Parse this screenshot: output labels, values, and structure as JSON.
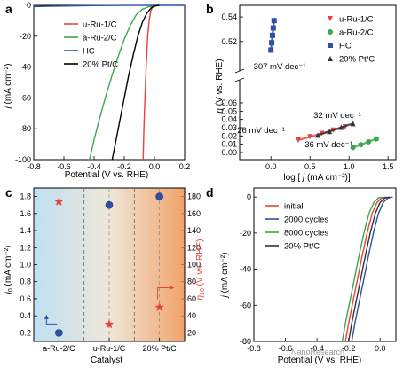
{
  "panels": {
    "a": "a",
    "b": "b",
    "c": "c",
    "d": "d"
  },
  "watermark": "NanoResearch",
  "chart_data": [
    {
      "id": "a",
      "type": "line",
      "xlabel": "Potential (V vs. RHE)",
      "ylabel": "j (mA cm⁻²)",
      "ylabel_italic": "j",
      "ylabel_rest": " (mA cm⁻²)",
      "xlim": [
        -0.8,
        0.2
      ],
      "ylim": [
        -100,
        0
      ],
      "xticks": [
        "-0.8",
        "-0.6",
        "-0.4",
        "-0.2",
        "0.0",
        "0.2"
      ],
      "xtick_values": [
        -0.8,
        -0.6,
        -0.4,
        -0.2,
        0.0,
        0.2
      ],
      "yticks": [
        "0",
        "-20",
        "-40",
        "-60",
        "-80",
        "-100"
      ],
      "ytick_values": [
        0,
        -20,
        -40,
        -60,
        -80,
        -100
      ],
      "legend_position": "top-right",
      "series": [
        {
          "name": "u-Ru-1/C",
          "color": "#e8413f",
          "x": [
            -0.075,
            -0.07,
            -0.063,
            -0.055,
            -0.045,
            -0.035,
            -0.025,
            -0.015,
            0.0,
            0.02
          ],
          "y": [
            -100,
            -80,
            -60,
            -40,
            -20,
            -10,
            -4,
            -1.5,
            -0.3,
            0
          ]
        },
        {
          "name": "a-Ru-2/C",
          "color": "#3aa84b",
          "x": [
            -0.43,
            -0.4,
            -0.36,
            -0.32,
            -0.28,
            -0.24,
            -0.2,
            -0.16,
            -0.12,
            -0.08,
            -0.04,
            0.0,
            0.04
          ],
          "y": [
            -100,
            -87,
            -72,
            -58,
            -45,
            -33,
            -22,
            -13,
            -6,
            -2.5,
            -1,
            -0.3,
            0
          ]
        },
        {
          "name": "HC",
          "color": "#2f4fa8",
          "x": [
            -0.8,
            -0.7,
            -0.6,
            -0.5,
            -0.4,
            -0.3,
            -0.2,
            -0.1,
            0.0,
            0.1,
            0.2
          ],
          "y": [
            -0.8,
            -0.6,
            -0.45,
            -0.3,
            -0.2,
            -0.12,
            -0.06,
            -0.03,
            0,
            0,
            0
          ]
        },
        {
          "name": "20% Pt/C",
          "color": "#000000",
          "x": [
            -0.28,
            -0.26,
            -0.23,
            -0.2,
            -0.17,
            -0.14,
            -0.11,
            -0.08,
            -0.05,
            -0.02,
            0.01,
            0.03
          ],
          "y": [
            -100,
            -90,
            -75,
            -60,
            -45,
            -32,
            -20,
            -11,
            -5,
            -1.5,
            -0.3,
            0
          ]
        }
      ]
    },
    {
      "id": "b",
      "type": "scatter",
      "xlabel": "log [ j (mA cm⁻²)]",
      "xlabel_pre": "log [ ",
      "xlabel_italic": "j",
      "xlabel_post": " (mA cm⁻²)]",
      "ylabel": "η (V vs. RHE)",
      "ylabel_italic": "η",
      "ylabel_rest": " (V vs. RHE)",
      "xlim": [
        -0.4,
        1.6
      ],
      "xticks": [
        "0.0",
        "0.5",
        "1.0",
        "1.5"
      ],
      "xtick_values": [
        0.0,
        0.5,
        1.0,
        1.5
      ],
      "yticks_upper": [
        "0.54",
        "0.52"
      ],
      "ytick_upper_values": [
        0.54,
        0.52
      ],
      "yticks_lower": [
        "0.06",
        "0.05",
        "0.04",
        "0.03",
        "0.02",
        "0.01",
        "0.00"
      ],
      "ytick_lower_values": [
        0.06,
        0.05,
        0.04,
        0.03,
        0.02,
        0.01,
        0.0
      ],
      "axis_break": true,
      "legend_position": "top-right",
      "annotations": [
        {
          "text": "307 mV dec⁻¹",
          "color": "#2f4fa8"
        },
        {
          "text": "32 mV dec⁻¹",
          "color": "#000000"
        },
        {
          "text": "26 mV dec⁻¹",
          "color": "#e8413f"
        },
        {
          "text": "36 mV dec⁻¹",
          "color": "#3aa84b"
        }
      ],
      "series": [
        {
          "name": "u-Ru-1/C",
          "marker": "triangle-down",
          "color": "#e8413f",
          "x": [
            0.35,
            0.5,
            0.65,
            0.8,
            0.95
          ],
          "y": [
            0.015,
            0.019,
            0.023,
            0.027,
            0.031
          ]
        },
        {
          "name": "a-Ru-2/C",
          "marker": "circle",
          "color": "#3aa84b",
          "x": [
            1.05,
            1.15,
            1.25,
            1.35
          ],
          "y": [
            0.006,
            0.0095,
            0.013,
            0.0165
          ]
        },
        {
          "name": "HC",
          "marker": "square",
          "color": "#2f4fa8",
          "x": [
            0.0,
            0.01,
            0.02,
            0.03,
            0.04
          ],
          "y": [
            0.513,
            0.519,
            0.525,
            0.531,
            0.537
          ]
        },
        {
          "name": "20% Pt/C",
          "marker": "triangle-up",
          "color": "#333333",
          "x": [
            0.6,
            0.75,
            0.9,
            1.05
          ],
          "y": [
            0.021,
            0.0255,
            0.0305,
            0.035
          ]
        }
      ]
    },
    {
      "id": "c",
      "type": "scatter",
      "xlabel": "Catalyst",
      "categories": [
        "a-Ru-2/C",
        "u-Ru-1/C",
        "20% Pt/C"
      ],
      "ylabel_left": "j₀ (mA cm⁻²)",
      "ylabel_left_italic": "j",
      "ylabel_left_sub": "0",
      "ylabel_left_rest": " (mA cm⁻²)",
      "ylabel_right": "η₁₀ (V vs. RHE)",
      "ylabel_right_italic": "η",
      "ylabel_right_sub": "10",
      "ylabel_right_rest": " (V vs. RHE)",
      "ylim_left": [
        0.1,
        1.9
      ],
      "yticks_left": [
        "0.2",
        "0.4",
        "0.6",
        "0.8",
        "1.0",
        "1.2",
        "1.4",
        "1.6",
        "1.8"
      ],
      "ytick_left_values": [
        0.2,
        0.4,
        0.6,
        0.8,
        1.0,
        1.2,
        1.4,
        1.6,
        1.8
      ],
      "ylim_right": [
        10,
        190
      ],
      "yticks_right": [
        "20",
        "40",
        "60",
        "80",
        "100",
        "120",
        "140",
        "160",
        "180"
      ],
      "ytick_right_values": [
        20,
        40,
        60,
        80,
        100,
        120,
        140,
        160,
        180
      ],
      "left_color": "#2f4fa8",
      "right_color": "#e8413f",
      "j0_values": [
        0.2,
        1.7,
        1.8
      ],
      "eta10_values": [
        174,
        30,
        50
      ]
    },
    {
      "id": "d",
      "type": "line",
      "xlabel": "Potential (V vs. RHE)",
      "ylabel": "j (mA cm⁻²)",
      "ylabel_italic": "j",
      "ylabel_rest": " (mA cm⁻²)",
      "xlim": [
        -0.8,
        0.1
      ],
      "ylim": [
        -80,
        5
      ],
      "xticks": [
        "-0.8",
        "-0.6",
        "-0.4",
        "-0.2",
        "0.0"
      ],
      "xtick_values": [
        -0.8,
        -0.6,
        -0.4,
        -0.2,
        0.0
      ],
      "yticks": [
        "0",
        "-20",
        "-40",
        "-60",
        "-80"
      ],
      "ytick_values": [
        0,
        -20,
        -40,
        -60,
        -80
      ],
      "legend_position": "top-right",
      "series": [
        {
          "name": "initial",
          "color": "#e8413f",
          "x": [
            -0.22,
            -0.2,
            -0.17,
            -0.14,
            -0.11,
            -0.08,
            -0.05,
            -0.02,
            0.01,
            0.04
          ],
          "y": [
            -80,
            -70,
            -57,
            -44,
            -31,
            -19,
            -9,
            -3,
            -0.5,
            0
          ]
        },
        {
          "name": "2000 cycles",
          "color": "#2f4fa8",
          "x": [
            -0.18,
            -0.16,
            -0.13,
            -0.1,
            -0.07,
            -0.04,
            -0.01,
            0.02,
            0.05,
            0.08
          ],
          "y": [
            -80,
            -70,
            -57,
            -44,
            -31,
            -19,
            -9,
            -3,
            -0.5,
            0
          ]
        },
        {
          "name": "8000 cycles",
          "color": "#3aa84b",
          "x": [
            -0.24,
            -0.22,
            -0.19,
            -0.16,
            -0.13,
            -0.1,
            -0.07,
            -0.04,
            -0.01,
            0.02
          ],
          "y": [
            -80,
            -70,
            -57,
            -44,
            -31,
            -19,
            -9,
            -3,
            -0.5,
            0
          ]
        },
        {
          "name": "20% Pt/C",
          "color": "#333333",
          "x": [
            -0.2,
            -0.18,
            -0.15,
            -0.12,
            -0.09,
            -0.06,
            -0.03,
            0.0,
            0.03,
            0.06
          ],
          "y": [
            -80,
            -70,
            -57,
            -44,
            -31,
            -19,
            -9,
            -3,
            -0.5,
            0
          ]
        }
      ]
    }
  ]
}
